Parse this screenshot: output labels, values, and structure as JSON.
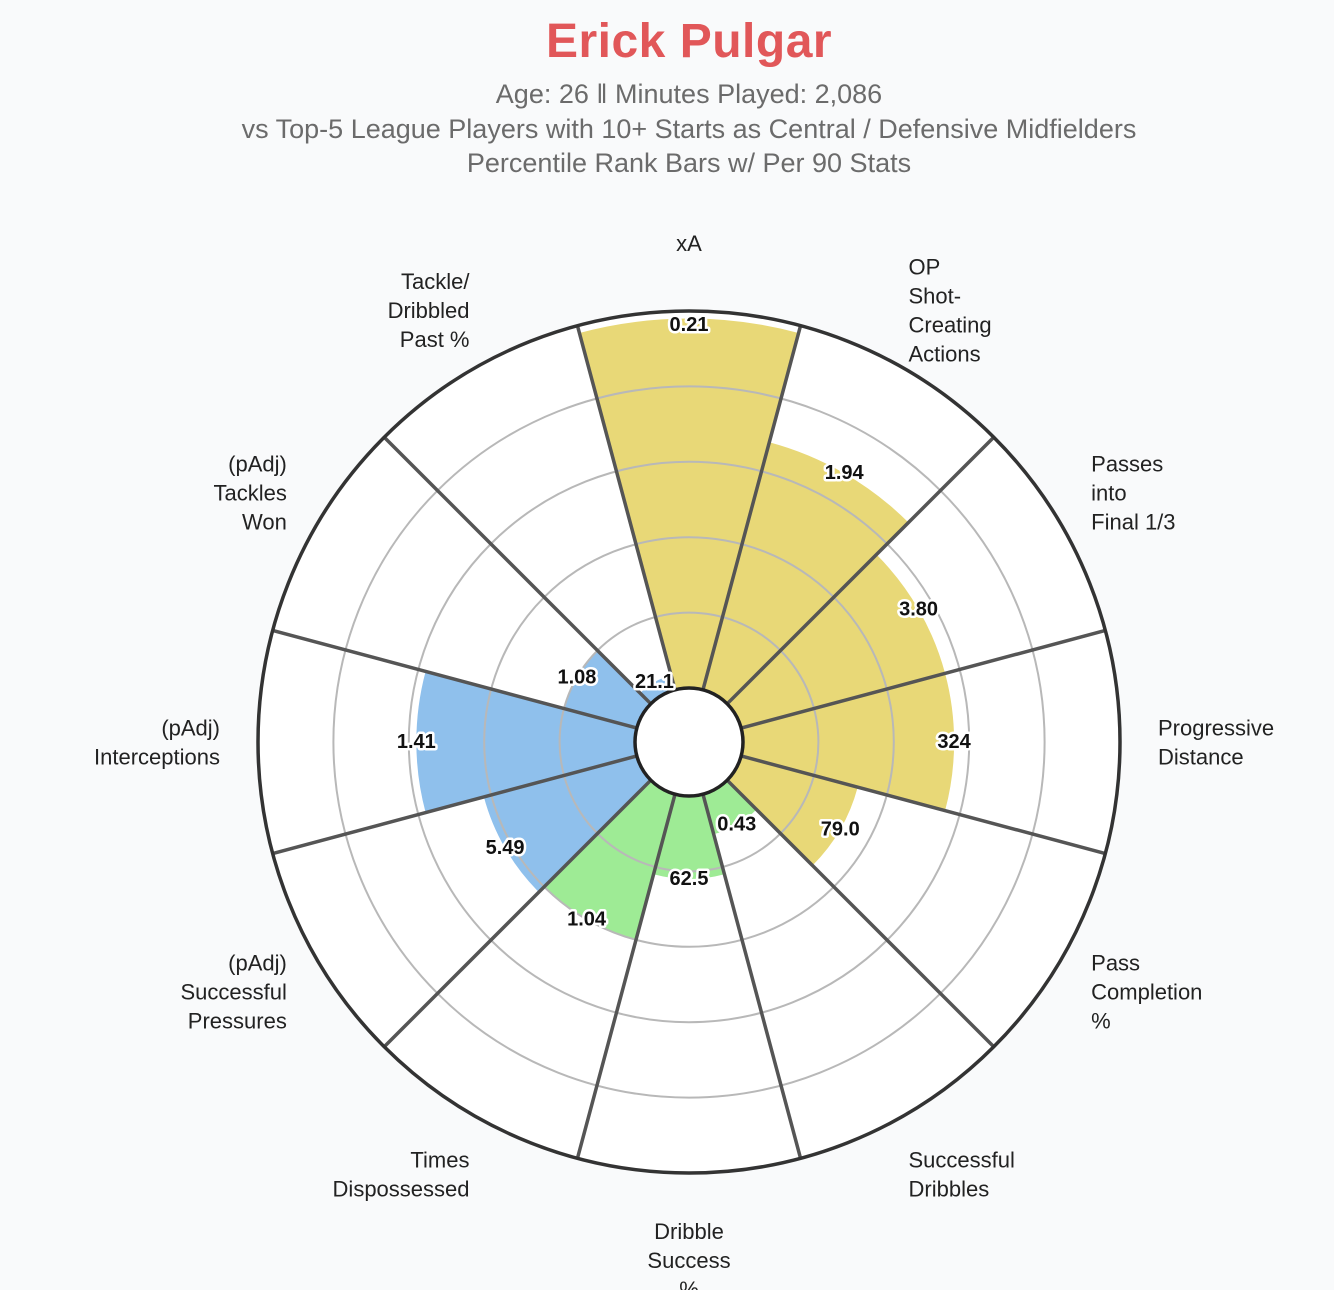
{
  "header": {
    "title": "Erick Pulgar",
    "subtitle_1": "Age: 26 ‖ Minutes Played: 2,086",
    "subtitle_2": "vs Top-5 League Players with 10+ Starts as Central / Defensive Midfielders",
    "subtitle_3": "Percentile Rank Bars w/ Per 90 Stats"
  },
  "colors": {
    "title": "#e15759",
    "attacking": "#e8d877",
    "possession": "#9eeb95",
    "defending": "#8fc0ec",
    "ring_outer": "#333333",
    "gridline": "#b8b8b8",
    "spoke": "#555555",
    "background": "#f9fafb"
  },
  "chart_data": {
    "type": "radar_bar",
    "value_axis": "percentile rank",
    "rlim": [
      0,
      100
    ],
    "grid_rings": [
      20,
      40,
      60,
      80,
      100
    ],
    "categories": [
      {
        "label_lines": [
          "xA"
        ],
        "per90": "0.21",
        "percentile": 98,
        "group": "attacking"
      },
      {
        "label_lines": [
          "OP",
          "Shot-",
          "Creating",
          "Actions"
        ],
        "per90": "1.94",
        "percentile": 68,
        "group": "attacking"
      },
      {
        "label_lines": [
          "Passes",
          "into",
          "Final 1/3"
        ],
        "per90": "3.80",
        "percentile": 56,
        "group": "attacking"
      },
      {
        "label_lines": [
          "Progressive",
          "Distance"
        ],
        "per90": "324",
        "percentile": 56,
        "group": "attacking"
      },
      {
        "label_lines": [
          "Pass",
          "Completion",
          "%"
        ],
        "per90": "79.0",
        "percentile": 32,
        "group": "attacking"
      },
      {
        "label_lines": [
          "Successful",
          "Dribbles"
        ],
        "per90": "0.43",
        "percentile": 11,
        "group": "possession"
      },
      {
        "label_lines": [
          "Dribble",
          "Success",
          "%"
        ],
        "per90": "62.5",
        "percentile": 22,
        "group": "possession"
      },
      {
        "label_lines": [
          "Times",
          "Dispossessed"
        ],
        "per90": "1.04",
        "percentile": 40,
        "group": "possession"
      },
      {
        "label_lines": [
          "(pAdj)",
          "Successful",
          "Pressures"
        ],
        "per90": "5.49",
        "percentile": 42,
        "group": "defending"
      },
      {
        "label_lines": [
          "(pAdj)",
          "Interceptions"
        ],
        "per90": "1.41",
        "percentile": 58,
        "group": "defending"
      },
      {
        "label_lines": [
          "(pAdj)",
          "Tackles",
          "Won"
        ],
        "per90": "1.08",
        "percentile": 20,
        "group": "defending"
      },
      {
        "label_lines": [
          "Tackle/",
          "Dribbled",
          "Past %"
        ],
        "per90": "21.1",
        "percentile": 4,
        "group": "defending"
      }
    ]
  }
}
